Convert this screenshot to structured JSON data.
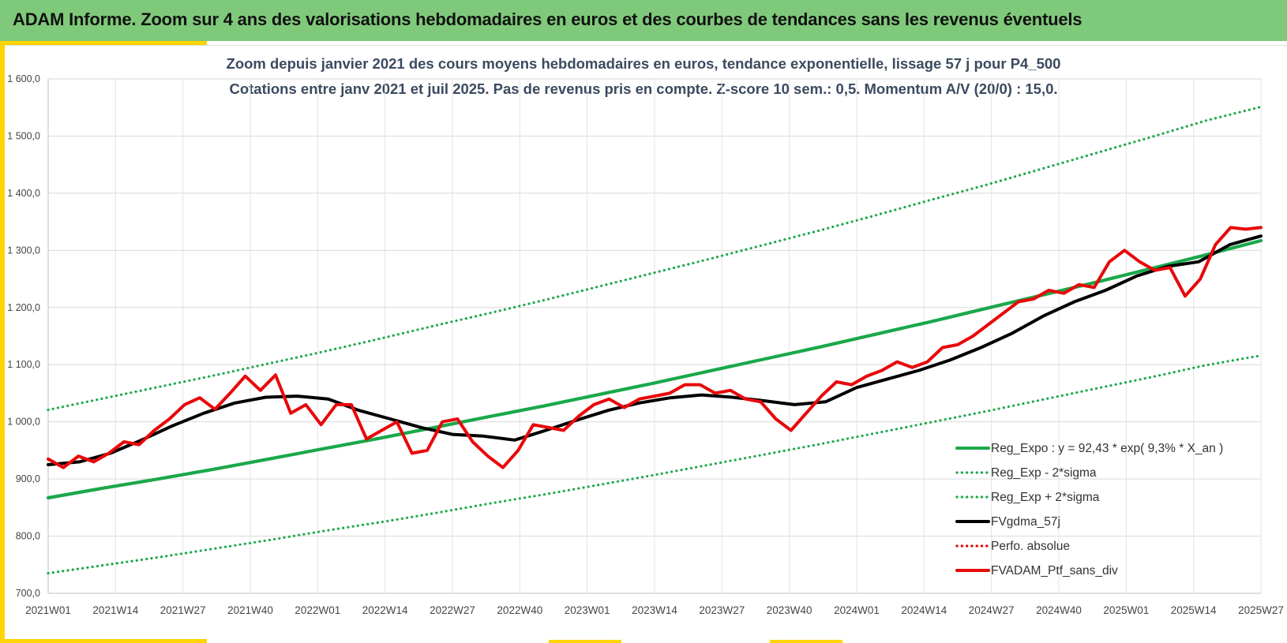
{
  "header": {
    "title": "ADAM Informe. Zoom sur 4 ans des valorisations hebdomadaires en euros et des courbes de tendances sans les revenus éventuels"
  },
  "chart_data": {
    "type": "line",
    "title": "Zoom depuis janvier 2021 des cours moyens hebdomadaires en euros, tendance exponentielle, lissage 57 j pour P4_500",
    "subtitle": "Cotations entre janv 2021 et juil 2025. Pas de revenus pris en compte. Z-score 10 sem.: 0,5. Momentum A/V (20/0) : 15,0.",
    "ylim": [
      700,
      1600
    ],
    "y_ticks": [
      "700,0",
      "800,0",
      "900,0",
      "1 000,0",
      "1 100,0",
      "1 200,0",
      "1 300,0",
      "1 400,0",
      "1 500,0",
      "1 600,0"
    ],
    "x_ticks": [
      "2021W01",
      "2021W14",
      "2021W27",
      "2021W40",
      "2022W01",
      "2022W14",
      "2022W27",
      "2022W40",
      "2023W01",
      "2023W14",
      "2023W27",
      "2023W40",
      "2024W01",
      "2024W14",
      "2024W27",
      "2024W40",
      "2025W01",
      "2025W14",
      "2025W27"
    ],
    "grid": true,
    "legend_position": "bottom-right",
    "series": [
      {
        "name": "Reg_Expo : y = 92,43 * exp( 9,3% *  X_an )",
        "color": "#1aa84a",
        "style": "solid",
        "values": [
          867,
          884,
          900,
          917,
          935,
          953,
          971,
          990,
          1009,
          1028,
          1048,
          1068,
          1089,
          1110,
          1131,
          1153,
          1175,
          1198,
          1221,
          1244,
          1268,
          1292,
          1317
        ]
      },
      {
        "name": "Reg_Exp - 2*sigma",
        "color": "#1aa84a",
        "style": "dotted",
        "values": [
          735,
          749,
          763,
          778,
          793,
          809,
          824,
          840,
          857,
          873,
          890,
          907,
          925,
          943,
          961,
          980,
          999,
          1018,
          1038,
          1058,
          1078,
          1099,
          1116
        ]
      },
      {
        "name": "Reg_Exp + 2*sigma",
        "color": "#1aa84a",
        "style": "dotted",
        "values": [
          1021,
          1041,
          1061,
          1081,
          1102,
          1123,
          1145,
          1168,
          1190,
          1213,
          1237,
          1261,
          1285,
          1310,
          1335,
          1361,
          1388,
          1414,
          1442,
          1470,
          1498,
          1527,
          1551
        ]
      },
      {
        "name": "FVgdma_57j",
        "color": "#000000",
        "style": "solid",
        "values": [
          925,
          930,
          945,
          968,
          993,
          1015,
          1033,
          1043,
          1045,
          1040,
          1020,
          1005,
          990,
          978,
          975,
          968,
          985,
          1003,
          1020,
          1033,
          1042,
          1047,
          1043,
          1037,
          1030,
          1035,
          1060,
          1075,
          1090,
          1108,
          1130,
          1155,
          1185,
          1210,
          1230,
          1255,
          1272,
          1280,
          1310,
          1325
        ]
      },
      {
        "name": "Perfo. absolue",
        "color": "#e00000",
        "style": "dotted",
        "values": []
      },
      {
        "name": "FVADAM_Ptf_sans_div",
        "color": "#e8080a",
        "style": "solid",
        "values": [
          935,
          920,
          940,
          930,
          945,
          965,
          960,
          985,
          1005,
          1030,
          1042,
          1022,
          1050,
          1080,
          1055,
          1082,
          1015,
          1030,
          995,
          1030,
          1030,
          970,
          985,
          1000,
          945,
          950,
          1000,
          1005,
          965,
          940,
          920,
          950,
          995,
          990,
          985,
          1010,
          1030,
          1040,
          1025,
          1040,
          1045,
          1050,
          1065,
          1065,
          1050,
          1055,
          1040,
          1035,
          1005,
          985,
          1015,
          1045,
          1070,
          1065,
          1080,
          1090,
          1105,
          1095,
          1105,
          1130,
          1135,
          1150,
          1170,
          1190,
          1210,
          1215,
          1230,
          1225,
          1240,
          1235,
          1280,
          1300,
          1280,
          1265,
          1270,
          1220,
          1250,
          1310,
          1340,
          1337,
          1340
        ]
      }
    ]
  }
}
